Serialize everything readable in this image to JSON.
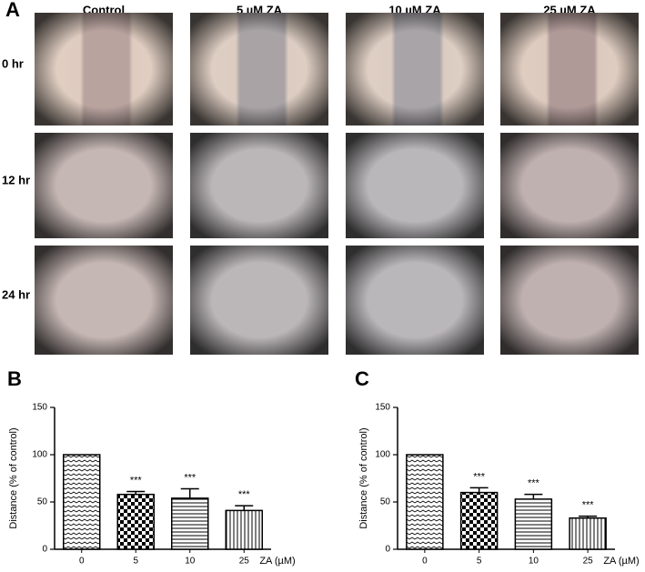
{
  "panel_labels": [
    "A",
    "B",
    "C"
  ],
  "micrographs": {
    "columns": [
      "Control",
      "5 µM ZA",
      "10 µM ZA",
      "25 µM ZA"
    ],
    "rows": [
      "0 hr",
      "12 hr",
      "24 hr"
    ]
  },
  "chart_data": [
    {
      "type": "bar",
      "categories": [
        "0",
        "5",
        "10",
        "25"
      ],
      "values": [
        100,
        58,
        54,
        41
      ],
      "errors": [
        0,
        3,
        10,
        5
      ],
      "annotations": [
        null,
        "***",
        "***",
        "***"
      ],
      "ylabel": "Distance (% of control)",
      "xlabel": "ZA (µM)",
      "ylim": [
        0,
        150
      ],
      "yticks": [
        0,
        50,
        100,
        150
      ],
      "color": "#000000"
    },
    {
      "type": "bar",
      "categories": [
        "0",
        "5",
        "10",
        "25"
      ],
      "values": [
        100,
        60,
        53,
        33
      ],
      "errors": [
        0,
        5,
        5,
        2
      ],
      "annotations": [
        null,
        "***",
        "***",
        "***"
      ],
      "ylabel": "Distance (% of control)",
      "xlabel": "ZA (µM)",
      "ylim": [
        0,
        150
      ],
      "yticks": [
        0,
        50,
        100,
        150
      ],
      "color": "#000000"
    }
  ]
}
